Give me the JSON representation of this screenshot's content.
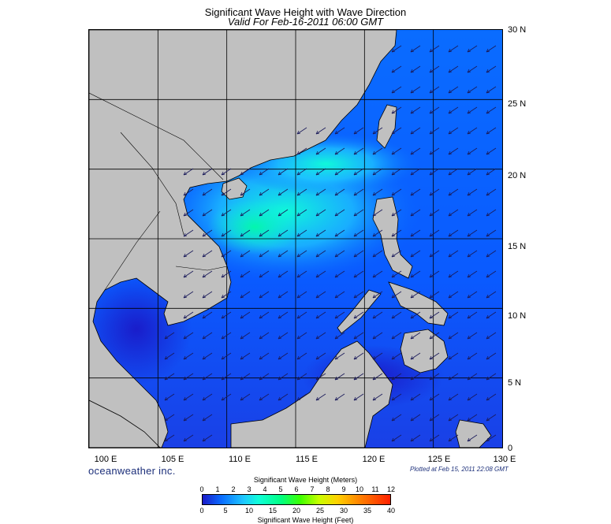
{
  "title": "Significant Wave Height with Wave Direction",
  "subtitle": "Valid For Feb-16-2011 06:00 GMT",
  "lat_labels": [
    "30 N",
    "25 N",
    "20 N",
    "15 N",
    "10 N",
    "5 N",
    "0"
  ],
  "lon_labels": [
    "100 E",
    "105 E",
    "110 E",
    "115 E",
    "120 E",
    "125 E",
    "130 E"
  ],
  "brand": "oceanweather inc.",
  "plotted": "Plotted at Feb 15, 2011 22:08 GMT",
  "colorbar": {
    "title_meters": "Significant Wave Height (Meters)",
    "title_feet": "Significant Wave Height (Feet)",
    "meter_ticks": [
      "0",
      "1",
      "2",
      "3",
      "4",
      "5",
      "6",
      "7",
      "8",
      "9",
      "10",
      "11",
      "12"
    ],
    "feet_ticks": [
      "0",
      "5",
      "10",
      "15",
      "20",
      "25",
      "30",
      "35",
      "40"
    ]
  },
  "colors": {
    "land": "#c0c0c0",
    "sea_low": "#1a1ac8",
    "sea_mid": "#0a6cff",
    "sea_high": "#1ec8ff",
    "sea_peak": "#10ffd8"
  },
  "wave_direction": "from northeast"
}
